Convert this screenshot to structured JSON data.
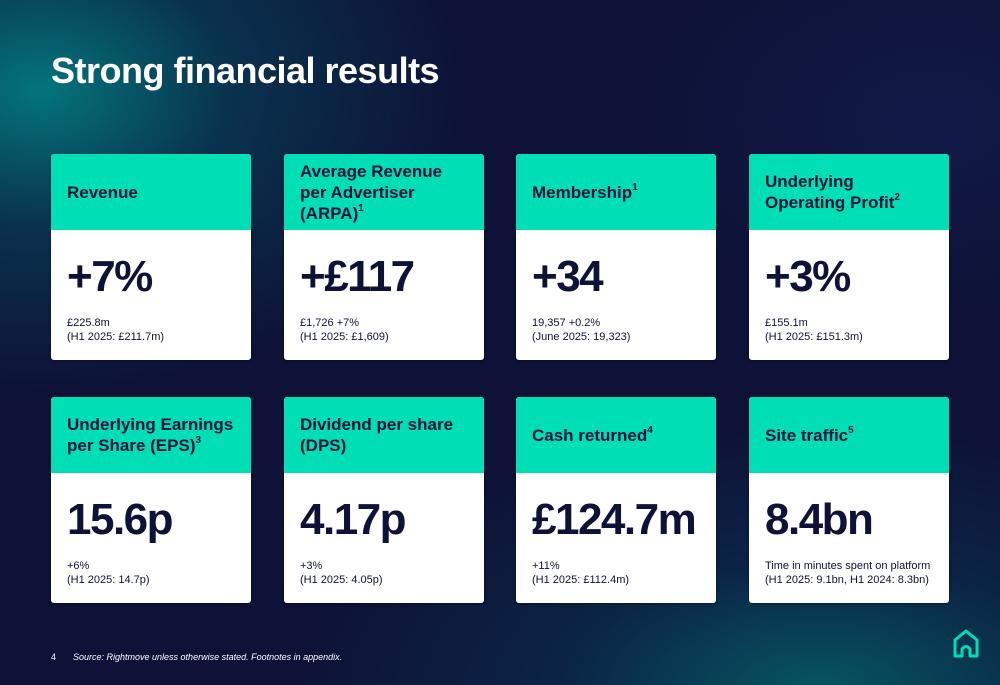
{
  "slide": {
    "title": "Strong financial results",
    "page_number": "4",
    "source_note": "Source: Rightmove unless otherwise stated.  Footnotes in appendix."
  },
  "cards": [
    {
      "label": "Revenue",
      "footnote": "",
      "value": "+7%",
      "detail_1": "£225.8m",
      "detail_2": "(H1 2025: £211.7m)"
    },
    {
      "label": "Average Revenue per Advertiser (ARPA)",
      "footnote": "1",
      "value": "+£117",
      "detail_1": "£1,726 +7%",
      "detail_2": "(H1 2025: £1,609)"
    },
    {
      "label": "Membership",
      "footnote": "1",
      "value": "+34",
      "detail_1": "19,357 +0.2%",
      "detail_2": "(June 2025: 19,323)"
    },
    {
      "label": "Underlying Operating Profit",
      "footnote": "2",
      "value": "+3%",
      "detail_1": "£155.1m",
      "detail_2": "(H1 2025: £151.3m)"
    },
    {
      "label": "Underlying Earnings per Share (EPS)",
      "footnote": "3",
      "value": "15.6p",
      "detail_1": "+6%",
      "detail_2": "(H1 2025: 14.7p)"
    },
    {
      "label": "Dividend per share (DPS)",
      "footnote": "",
      "value": "4.17p",
      "detail_1": "+3%",
      "detail_2": "(H1 2025: 4.05p)"
    },
    {
      "label": "Cash returned",
      "footnote": "4",
      "value": "£124.7m",
      "detail_1": "+11%",
      "detail_2": "(H1 2025: £112.4m)"
    },
    {
      "label": "Site traffic",
      "footnote": "5",
      "value": "8.4bn",
      "detail_1": "Time in minutes spent on platform",
      "detail_2": "(H1 2025: 9.1bn, H1 2024: 8.3bn)"
    }
  ],
  "colors": {
    "background": "#0e1238",
    "accent": "#00deb6",
    "card": "#ffffff",
    "text_dark": "#0e1238"
  },
  "logo": {
    "icon": "house-logo-icon"
  }
}
